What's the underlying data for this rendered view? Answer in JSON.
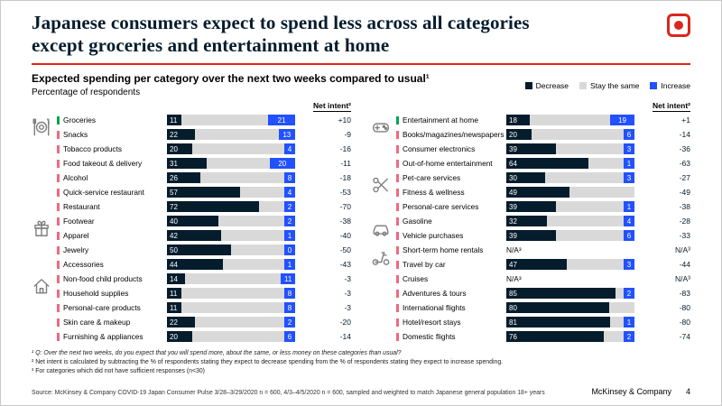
{
  "slide": {
    "title_line1": "Japanese consumers expect to spend less across all categories",
    "title_line2": "except groceries and entertainment at home",
    "footer_brand": "McKinsey & Company",
    "page_number": "4"
  },
  "chart": {
    "heading": "Expected spending per category over the next two weeks compared to usual¹",
    "unit_label": "Percentage of respondents",
    "net_intent_header": "Net intent²",
    "na_label": "N/A³",
    "legend": [
      {
        "label": "Decrease",
        "color": "#051c2c"
      },
      {
        "label": "Stay the same",
        "color": "#d9d9d9"
      },
      {
        "label": "Increase",
        "color": "#2251ff"
      }
    ]
  },
  "colors": {
    "decrease": "#051c2c",
    "same": "#d9d9d9",
    "increase": "#2251ff",
    "positive_tick": "#00a650",
    "negative_tick": "#ee6a7f",
    "accent_red": "#e32119",
    "title_navy": "#051c2c"
  },
  "chart_data": {
    "type": "bar",
    "orientation": "horizontal-stacked",
    "series_names": [
      "Decrease",
      "Stay the same",
      "Increase"
    ],
    "value_unit": "% of respondents",
    "panels": [
      {
        "groups": [
          {
            "icon": "dining-icon",
            "row": 0
          },
          {
            "icon": "gift-icon",
            "row": 7
          },
          {
            "icon": "house-icon",
            "row": 11
          }
        ],
        "rows": [
          {
            "label": "Groceries",
            "decrease": 11,
            "same": 68,
            "increase": 21,
            "net": "+10"
          },
          {
            "label": "Snacks",
            "decrease": 22,
            "same": 65,
            "increase": 13,
            "net": "-9"
          },
          {
            "label": "Tobacco products",
            "decrease": 20,
            "same": 76,
            "increase": 4,
            "net": "-16"
          },
          {
            "label": "Food takeout & delivery",
            "decrease": 31,
            "same": 49,
            "increase": 20,
            "net": "-11"
          },
          {
            "label": "Alcohol",
            "decrease": 26,
            "same": 66,
            "increase": 8,
            "net": "-18"
          },
          {
            "label": "Quick-service restaurant",
            "decrease": 57,
            "same": 39,
            "increase": 4,
            "net": "-53"
          },
          {
            "label": "Restaurant",
            "decrease": 72,
            "same": 26,
            "increase": 2,
            "net": "-70"
          },
          {
            "label": "Footwear",
            "decrease": 40,
            "same": 58,
            "increase": 2,
            "net": "-38"
          },
          {
            "label": "Apparel",
            "decrease": 42,
            "same": 57,
            "increase": 1,
            "net": "-40"
          },
          {
            "label": "Jewelry",
            "decrease": 50,
            "same": 50,
            "increase": 0,
            "net": "-50"
          },
          {
            "label": "Accessories",
            "decrease": 44,
            "same": 55,
            "increase": 1,
            "net": "-43"
          },
          {
            "label": "Non-food child products",
            "decrease": 14,
            "same": 75,
            "increase": 11,
            "net": "-3"
          },
          {
            "label": "Household supplies",
            "decrease": 11,
            "same": 81,
            "increase": 8,
            "net": "-3"
          },
          {
            "label": "Personal-care products",
            "decrease": 11,
            "same": 81,
            "increase": 8,
            "net": "-3"
          },
          {
            "label": "Skin care & makeup",
            "decrease": 22,
            "same": 76,
            "increase": 2,
            "net": "-20"
          },
          {
            "label": "Furnishing & appliances",
            "decrease": 20,
            "same": 74,
            "increase": 6,
            "net": "-14"
          }
        ]
      },
      {
        "groups": [
          {
            "icon": "gamepad-icon",
            "row": 0
          },
          {
            "icon": "scissors-icon",
            "row": 4
          },
          {
            "icon": "car-icon",
            "row": 7
          },
          {
            "icon": "scooter-icon",
            "row": 9
          }
        ],
        "rows": [
          {
            "label": "Entertainment at home",
            "decrease": 18,
            "same": 63,
            "increase": 19,
            "net": "+1"
          },
          {
            "label": "Books/magazines/newspapers",
            "decrease": 20,
            "same": 74,
            "increase": 6,
            "net": "-14"
          },
          {
            "label": "Consumer electronics",
            "decrease": 39,
            "same": 58,
            "increase": 3,
            "net": "-36"
          },
          {
            "label": "Out-of-home entertainment",
            "decrease": 64,
            "same": 35,
            "increase": 1,
            "net": "-63"
          },
          {
            "label": "Pet-care services",
            "decrease": 30,
            "same": 67,
            "increase": 3,
            "net": "-27"
          },
          {
            "label": "Fitness & wellness",
            "decrease": 49,
            "same": 51,
            "increase": null,
            "net": "-49"
          },
          {
            "label": "Personal-care services",
            "decrease": 39,
            "same": 60,
            "increase": 1,
            "net": "-38"
          },
          {
            "label": "Gasoline",
            "decrease": 32,
            "same": 64,
            "increase": 4,
            "net": "-28"
          },
          {
            "label": "Vehicle purchases",
            "decrease": 39,
            "same": 55,
            "increase": 6,
            "net": "-33"
          },
          {
            "label": "Short-term home rentals",
            "na": true,
            "net": "N/A³"
          },
          {
            "label": "Travel by car",
            "decrease": 47,
            "same": 50,
            "increase": 3,
            "net": "-44"
          },
          {
            "label": "Cruises",
            "na": true,
            "net": "N/A³"
          },
          {
            "label": "Adventures & tours",
            "decrease": 85,
            "same": 13,
            "increase": 2,
            "net": "-83"
          },
          {
            "label": "International flights",
            "decrease": 80,
            "same": 20,
            "increase": null,
            "net": "-80"
          },
          {
            "label": "Hotel/resort stays",
            "decrease": 81,
            "same": 18,
            "increase": 1,
            "net": "-80"
          },
          {
            "label": "Domestic flights",
            "decrease": 76,
            "same": 22,
            "increase": 2,
            "net": "-74"
          }
        ]
      }
    ]
  },
  "footnotes": [
    "¹ Q: Over the next two weeks, do you expect that you will spend more, about the same, or less money on these categories than usual?",
    "² Net intent is calculated by subtracting the % of respondents stating they expect to decrease spending from the % of respondents stating they expect to increase spending.",
    "³ For categories which did not have sufficient responses (n<30)"
  ],
  "source": "Source: McKinsey & Company COVID-19 Japan Consumer Pulse 3/28–3/29/2020 n = 600, 4/3–4/5/2020 n = 600, sampled and weighted to match Japanese general population 18+ years"
}
